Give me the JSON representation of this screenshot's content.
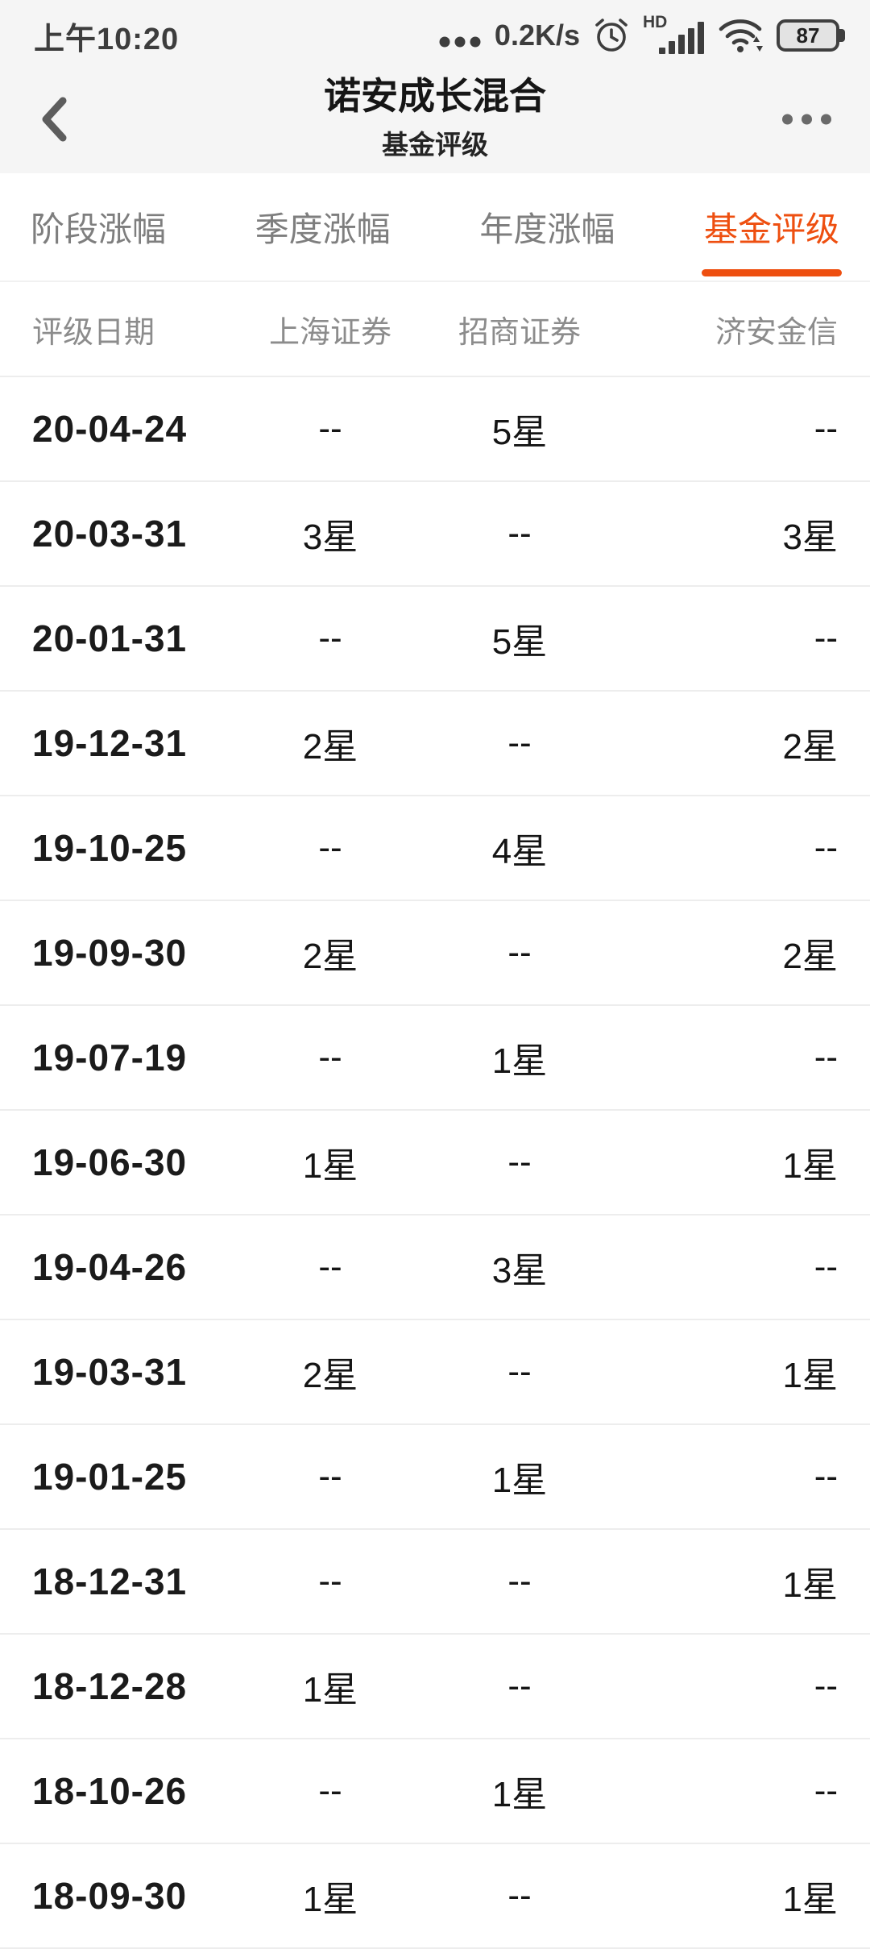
{
  "status_bar": {
    "time": "上午10:20",
    "network_speed": "0.2K/s",
    "hd_label": "HD",
    "battery_percent": "87"
  },
  "header": {
    "title": "诺安成长混合",
    "subtitle": "基金评级"
  },
  "tabs": [
    {
      "label": "阶段涨幅",
      "active": false
    },
    {
      "label": "季度涨幅",
      "active": false
    },
    {
      "label": "年度涨幅",
      "active": false
    },
    {
      "label": "基金评级",
      "active": true
    }
  ],
  "table": {
    "columns": [
      "评级日期",
      "上海证券",
      "招商证券",
      "济安金信"
    ],
    "rows": [
      [
        "20-04-24",
        "--",
        "5星",
        "--"
      ],
      [
        "20-03-31",
        "3星",
        "--",
        "3星"
      ],
      [
        "20-01-31",
        "--",
        "5星",
        "--"
      ],
      [
        "19-12-31",
        "2星",
        "--",
        "2星"
      ],
      [
        "19-10-25",
        "--",
        "4星",
        "--"
      ],
      [
        "19-09-30",
        "2星",
        "--",
        "2星"
      ],
      [
        "19-07-19",
        "--",
        "1星",
        "--"
      ],
      [
        "19-06-30",
        "1星",
        "--",
        "1星"
      ],
      [
        "19-04-26",
        "--",
        "3星",
        "--"
      ],
      [
        "19-03-31",
        "2星",
        "--",
        "1星"
      ],
      [
        "19-01-25",
        "--",
        "1星",
        "--"
      ],
      [
        "18-12-31",
        "--",
        "--",
        "1星"
      ],
      [
        "18-12-28",
        "1星",
        "--",
        "--"
      ],
      [
        "18-10-26",
        "--",
        "1星",
        "--"
      ],
      [
        "18-09-30",
        "1星",
        "--",
        "1星"
      ]
    ]
  },
  "icons": {
    "back": "chevron-left",
    "more": "ellipsis",
    "data_dots": "ellipsis",
    "alarm": "alarm-clock",
    "signal": "cellular-signal-bars",
    "wifi": "wifi-arcs",
    "battery": "battery-with-percent"
  },
  "colors": {
    "accent": "#ee4f10",
    "status_text": "#3d3d3d"
  }
}
